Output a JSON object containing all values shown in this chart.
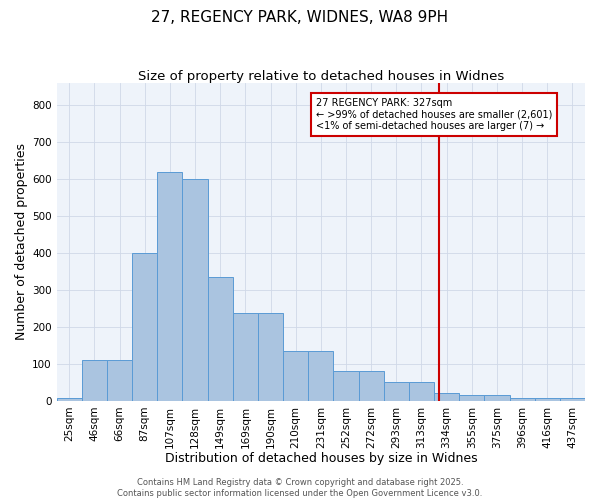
{
  "title": "27, REGENCY PARK, WIDNES, WA8 9PH",
  "subtitle": "Size of property relative to detached houses in Widnes",
  "xlabel": "Distribution of detached houses by size in Widnes",
  "ylabel": "Number of detached properties",
  "bar_labels": [
    "25sqm",
    "46sqm",
    "66sqm",
    "87sqm",
    "107sqm",
    "128sqm",
    "149sqm",
    "169sqm",
    "190sqm",
    "210sqm",
    "231sqm",
    "252sqm",
    "272sqm",
    "293sqm",
    "313sqm",
    "334sqm",
    "355sqm",
    "375sqm",
    "396sqm",
    "416sqm",
    "437sqm"
  ],
  "bar_values": [
    8,
    110,
    110,
    400,
    620,
    600,
    335,
    238,
    238,
    135,
    135,
    80,
    80,
    50,
    50,
    20,
    16,
    16,
    8,
    8,
    8
  ],
  "bar_color": "#aac4e0",
  "bar_edge_color": "#5a9bd5",
  "grid_color": "#d0d8e8",
  "background_color": "#eef3fa",
  "vline_color": "#cc0000",
  "annotation_text": "27 REGENCY PARK: 327sqm\n← >99% of detached houses are smaller (2,601)\n<1% of semi-detached houses are larger (7) →",
  "annotation_box_facecolor": "#ffffff",
  "annotation_box_edgecolor": "#cc0000",
  "ylim": [
    0,
    860
  ],
  "yticks": [
    0,
    100,
    200,
    300,
    400,
    500,
    600,
    700,
    800
  ],
  "footer": "Contains HM Land Registry data © Crown copyright and database right 2025.\nContains public sector information licensed under the Open Government Licence v3.0.",
  "title_fontsize": 11,
  "subtitle_fontsize": 9.5,
  "axis_label_fontsize": 9,
  "tick_fontsize": 7.5,
  "annotation_fontsize": 7,
  "footer_fontsize": 6
}
